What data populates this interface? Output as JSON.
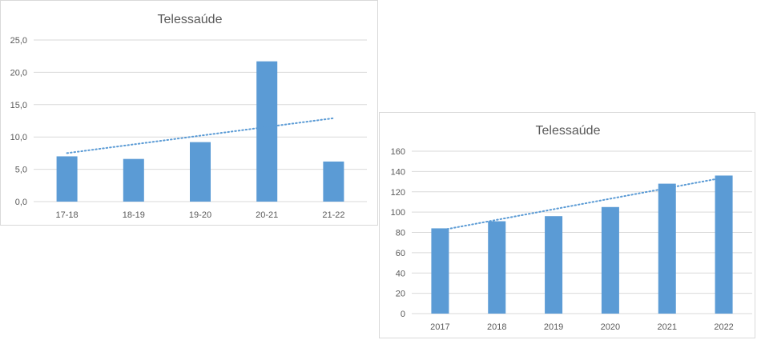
{
  "chart_data": [
    {
      "type": "bar",
      "title": "Telessaúde",
      "categories": [
        "17-18",
        "18-19",
        "19-20",
        "20-21",
        "21-22"
      ],
      "values": [
        7.0,
        6.6,
        9.2,
        21.7,
        6.2
      ],
      "ylim": [
        0,
        25
      ],
      "yticks": [
        "0,0",
        "5,0",
        "10,0",
        "15,0",
        "20,0",
        "25,0"
      ],
      "trendline": {
        "style": "linear",
        "dotted": true,
        "from": 7.5,
        "to": 12.9
      },
      "grid": true,
      "bar_color": "#5b9bd5",
      "trend_color": "#5b9bd5"
    },
    {
      "type": "bar",
      "title": "Telessaúde",
      "categories": [
        "2017",
        "2018",
        "2019",
        "2020",
        "2021",
        "2022"
      ],
      "values": [
        84,
        91,
        96,
        105,
        128,
        136
      ],
      "ylim": [
        0,
        160
      ],
      "yticks": [
        "0",
        "20",
        "40",
        "60",
        "80",
        "100",
        "120",
        "140",
        "160"
      ],
      "trendline": {
        "style": "linear",
        "dotted": true,
        "from": 82,
        "to": 134
      },
      "grid": true,
      "bar_color": "#5b9bd5",
      "trend_color": "#5b9bd5"
    }
  ]
}
